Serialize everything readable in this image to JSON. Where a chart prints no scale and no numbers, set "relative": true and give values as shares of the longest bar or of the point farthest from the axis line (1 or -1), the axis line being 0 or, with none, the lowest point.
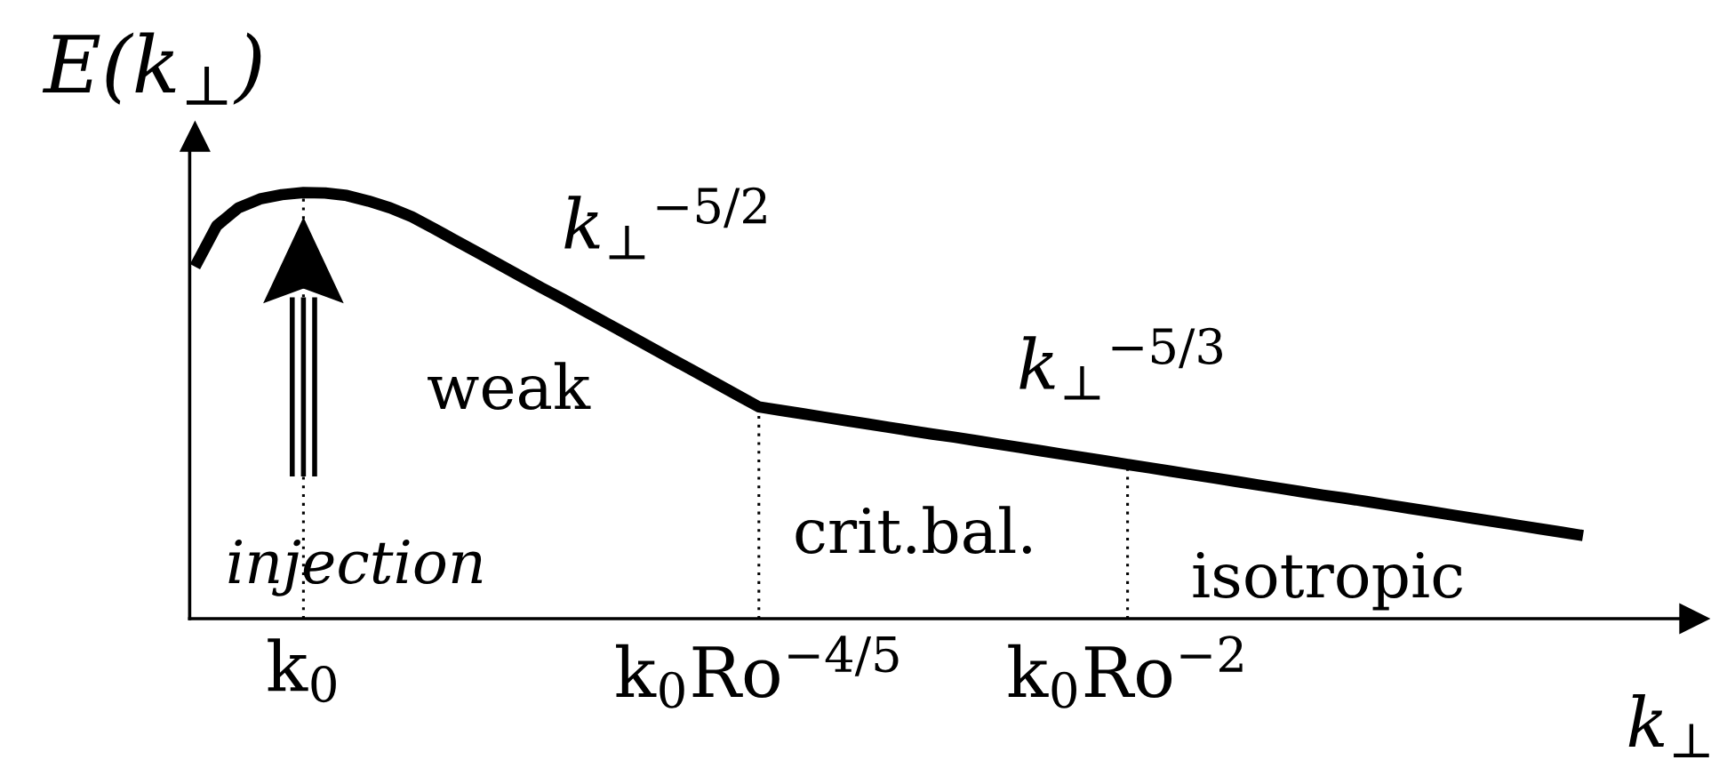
{
  "chart_data": {
    "type": "line",
    "relative": true,
    "ylabel": "E(k$_{⊥}$)",
    "xlabel": "k$_{⊥}$",
    "categories": [
      null,
      null,
      null,
      null,
      null,
      "k$_{0}$",
      null,
      null,
      null,
      null,
      null,
      null,
      null,
      null,
      null,
      null,
      null,
      null,
      null,
      null,
      null,
      null,
      null,
      null,
      null,
      null,
      "k$_{0}$Ro$^{−4/5}$",
      null,
      null,
      null,
      null,
      null,
      null,
      null,
      null,
      null,
      null,
      null,
      null,
      null,
      null,
      null,
      null,
      "k$_{0}$Ro$^{−2}$",
      null,
      null,
      null,
      null,
      null,
      null,
      null,
      null,
      null,
      null,
      null,
      null,
      null,
      null,
      null,
      null,
      null,
      null,
      null,
      null,
      null
    ],
    "color": "#000000",
    "values": [
      0.826,
      0.922,
      0.964,
      0.985,
      0.995,
      1.0,
      0.999,
      0.993,
      0.98,
      0.964,
      0.943,
      0.916,
      0.888,
      0.86,
      0.832,
      0.804,
      0.776,
      0.749,
      0.721,
      0.693,
      0.665,
      0.637,
      0.609,
      0.581,
      0.553,
      0.525,
      0.497,
      0.489,
      0.481,
      0.473,
      0.465,
      0.457,
      0.449,
      0.441,
      0.433,
      0.426,
      0.418,
      0.41,
      0.402,
      0.394,
      0.386,
      0.378,
      0.37,
      0.362,
      0.354,
      0.346,
      0.338,
      0.33,
      0.322,
      0.314,
      0.306,
      0.298,
      0.29,
      0.283,
      0.275,
      0.267,
      0.259,
      0.251,
      0.243,
      0.235,
      0.227,
      0.219,
      0.211,
      0.203,
      0.195
    ],
    "ref_lines": [
      {
        "axis": "x",
        "value": "k$_{0}$",
        "color": "#000000",
        "line_style": "dotted"
      },
      {
        "axis": "x",
        "value": "k$_{0}$Ro$^{−4/5}$",
        "color": "#000000",
        "line_style": "dotted"
      },
      {
        "axis": "x",
        "value": "k$_{0}$Ro$^{−2}$",
        "color": "#000000",
        "line_style": "dotted"
      }
    ],
    "annotations": [
      "k$_{⊥}$$^{−5/2}$",
      "k$_{⊥}$$^{−5/3}$",
      "weak",
      "crit.bal.",
      "isotropic",
      "injection"
    ]
  }
}
